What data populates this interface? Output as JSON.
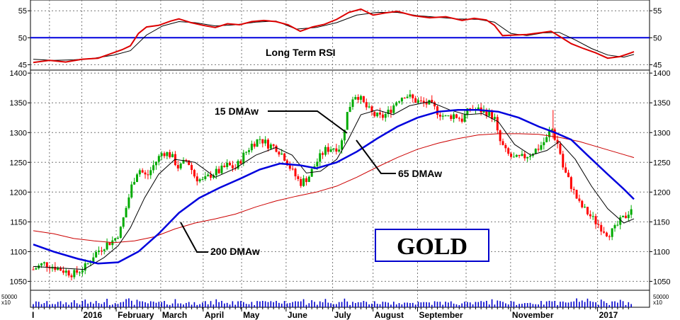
{
  "chart_data": {
    "type": "line",
    "title": "GOLD",
    "series_colors": {
      "price_up": "#00aa00",
      "price_down": "#ff0000",
      "ma15": "#000000",
      "ma65": "#0000dd",
      "ma200": "#cc0000",
      "rsi": "#dd0000",
      "rsi_ma": "#000000",
      "rsi_level": "#0000dd",
      "volume": "#0000cc"
    },
    "x_axis": {
      "labels": [
        "2016",
        "February",
        "March",
        "April",
        "May",
        "June",
        "July",
        "August",
        "September",
        "November",
        "2017"
      ],
      "leading_label": "I"
    },
    "price_panel": {
      "ylim": [
        1035,
        1405
      ],
      "y_ticks": [
        1050,
        1100,
        1150,
        1200,
        1250,
        1300,
        1350,
        1400
      ],
      "y_tick_labels": [
        "1050",
        "1100",
        "1150",
        "1200",
        "1250",
        "1300",
        "1350",
        "1400"
      ],
      "x_range": [
        0,
        283
      ],
      "price_path": [
        [
          0,
          1070
        ],
        [
          5,
          1080
        ],
        [
          10,
          1075
        ],
        [
          15,
          1068
        ],
        [
          20,
          1062
        ],
        [
          26,
          1075
        ],
        [
          30,
          1095
        ],
        [
          35,
          1110
        ],
        [
          40,
          1120
        ],
        [
          43,
          1135
        ],
        [
          46,
          1175
        ],
        [
          49,
          1215
        ],
        [
          52,
          1240
        ],
        [
          56,
          1225
        ],
        [
          60,
          1248
        ],
        [
          64,
          1268
        ],
        [
          68,
          1262
        ],
        [
          72,
          1240
        ],
        [
          76,
          1255
        ],
        [
          80,
          1225
        ],
        [
          84,
          1218
        ],
        [
          88,
          1230
        ],
        [
          92,
          1235
        ],
        [
          96,
          1245
        ],
        [
          100,
          1240
        ],
        [
          104,
          1262
        ],
        [
          108,
          1280
        ],
        [
          112,
          1290
        ],
        [
          116,
          1280
        ],
        [
          120,
          1275
        ],
        [
          124,
          1260
        ],
        [
          128,
          1235
        ],
        [
          132,
          1215
        ],
        [
          136,
          1225
        ],
        [
          140,
          1250
        ],
        [
          144,
          1270
        ],
        [
          148,
          1275
        ],
        [
          152,
          1275
        ],
        [
          155,
          1330
        ],
        [
          158,
          1360
        ],
        [
          160,
          1365
        ],
        [
          164,
          1345
        ],
        [
          168,
          1330
        ],
        [
          172,
          1325
        ],
        [
          176,
          1335
        ],
        [
          180,
          1355
        ],
        [
          184,
          1365
        ],
        [
          188,
          1355
        ],
        [
          192,
          1350
        ],
        [
          196,
          1348
        ],
        [
          200,
          1335
        ],
        [
          204,
          1325
        ],
        [
          208,
          1330
        ],
        [
          212,
          1322
        ],
        [
          216,
          1340
        ],
        [
          220,
          1338
        ],
        [
          224,
          1335
        ],
        [
          228,
          1325
        ],
        [
          230,
          1290
        ],
        [
          234,
          1265
        ],
        [
          238,
          1255
        ],
        [
          242,
          1258
        ],
        [
          246,
          1265
        ],
        [
          250,
          1275
        ],
        [
          254,
          1290
        ],
        [
          256,
          1310
        ],
        [
          258,
          1290
        ],
        [
          260,
          1275
        ],
        [
          262,
          1240
        ],
        [
          266,
          1210
        ],
        [
          270,
          1180
        ],
        [
          274,
          1165
        ],
        [
          278,
          1150
        ],
        [
          281,
          1140
        ],
        [
          284,
          1130
        ],
        [
          287,
          1135
        ],
        [
          290,
          1150
        ],
        [
          293,
          1160
        ],
        [
          296,
          1175
        ]
      ],
      "ma15": [
        [
          0,
          1075
        ],
        [
          15,
          1072
        ],
        [
          25,
          1070
        ],
        [
          35,
          1090
        ],
        [
          42,
          1110
        ],
        [
          48,
          1140
        ],
        [
          55,
          1190
        ],
        [
          62,
          1230
        ],
        [
          70,
          1255
        ],
        [
          80,
          1250
        ],
        [
          90,
          1225
        ],
        [
          100,
          1240
        ],
        [
          110,
          1262
        ],
        [
          120,
          1275
        ],
        [
          128,
          1262
        ],
        [
          135,
          1232
        ],
        [
          142,
          1235
        ],
        [
          150,
          1255
        ],
        [
          156,
          1290
        ],
        [
          162,
          1330
        ],
        [
          170,
          1338
        ],
        [
          178,
          1330
        ],
        [
          186,
          1345
        ],
        [
          196,
          1352
        ],
        [
          206,
          1338
        ],
        [
          214,
          1330
        ],
        [
          222,
          1332
        ],
        [
          230,
          1318
        ],
        [
          238,
          1280
        ],
        [
          246,
          1262
        ],
        [
          254,
          1270
        ],
        [
          260,
          1285
        ],
        [
          268,
          1255
        ],
        [
          276,
          1210
        ],
        [
          284,
          1172
        ],
        [
          292,
          1148
        ],
        [
          297,
          1155
        ]
      ],
      "ma65": [
        [
          0,
          1112
        ],
        [
          10,
          1100
        ],
        [
          22,
          1088
        ],
        [
          32,
          1080
        ],
        [
          42,
          1082
        ],
        [
          52,
          1100
        ],
        [
          62,
          1130
        ],
        [
          72,
          1165
        ],
        [
          82,
          1190
        ],
        [
          92,
          1207
        ],
        [
          102,
          1222
        ],
        [
          112,
          1238
        ],
        [
          122,
          1248
        ],
        [
          132,
          1245
        ],
        [
          140,
          1240
        ],
        [
          150,
          1250
        ],
        [
          160,
          1268
        ],
        [
          170,
          1290
        ],
        [
          180,
          1310
        ],
        [
          190,
          1325
        ],
        [
          200,
          1335
        ],
        [
          210,
          1338
        ],
        [
          220,
          1338
        ],
        [
          230,
          1335
        ],
        [
          240,
          1325
        ],
        [
          250,
          1310
        ],
        [
          258,
          1300
        ],
        [
          266,
          1288
        ],
        [
          274,
          1262
        ],
        [
          284,
          1230
        ],
        [
          292,
          1205
        ],
        [
          297,
          1188
        ]
      ],
      "ma200": [
        [
          0,
          1135
        ],
        [
          10,
          1130
        ],
        [
          20,
          1122
        ],
        [
          30,
          1118
        ],
        [
          40,
          1115
        ],
        [
          50,
          1118
        ],
        [
          60,
          1125
        ],
        [
          70,
          1138
        ],
        [
          80,
          1148
        ],
        [
          90,
          1155
        ],
        [
          100,
          1163
        ],
        [
          110,
          1175
        ],
        [
          120,
          1185
        ],
        [
          130,
          1193
        ],
        [
          140,
          1200
        ],
        [
          150,
          1210
        ],
        [
          160,
          1225
        ],
        [
          170,
          1242
        ],
        [
          180,
          1258
        ],
        [
          190,
          1272
        ],
        [
          200,
          1282
        ],
        [
          210,
          1290
        ],
        [
          220,
          1296
        ],
        [
          230,
          1298
        ],
        [
          240,
          1298
        ],
        [
          250,
          1297
        ],
        [
          260,
          1292
        ],
        [
          270,
          1285
        ],
        [
          280,
          1275
        ],
        [
          290,
          1265
        ],
        [
          297,
          1258
        ]
      ]
    },
    "rsi_panel": {
      "label": "Long Term RSI",
      "ylim": [
        44,
        57
      ],
      "y_ticks": [
        45,
        50,
        55
      ],
      "y_tick_labels": [
        "45",
        "50",
        "55"
      ],
      "reference_level": 50,
      "rsi": [
        [
          0,
          45.4
        ],
        [
          8,
          45.8
        ],
        [
          16,
          45.5
        ],
        [
          24,
          46.0
        ],
        [
          32,
          46.2
        ],
        [
          38,
          47.0
        ],
        [
          44,
          47.8
        ],
        [
          48,
          48.5
        ],
        [
          52,
          50.8
        ],
        [
          56,
          52.0
        ],
        [
          62,
          52.3
        ],
        [
          68,
          53.1
        ],
        [
          72,
          53.5
        ],
        [
          78,
          52.8
        ],
        [
          84,
          52.3
        ],
        [
          90,
          51.9
        ],
        [
          96,
          52.6
        ],
        [
          102,
          52.4
        ],
        [
          108,
          53.0
        ],
        [
          114,
          53.2
        ],
        [
          120,
          53.0
        ],
        [
          126,
          52.4
        ],
        [
          132,
          51.2
        ],
        [
          138,
          52.0
        ],
        [
          144,
          52.5
        ],
        [
          150,
          53.4
        ],
        [
          156,
          54.7
        ],
        [
          162,
          55.3
        ],
        [
          168,
          54.2
        ],
        [
          174,
          54.6
        ],
        [
          180,
          54.9
        ],
        [
          188,
          54.1
        ],
        [
          196,
          53.7
        ],
        [
          204,
          53.9
        ],
        [
          212,
          53.2
        ],
        [
          218,
          53.6
        ],
        [
          224,
          53.3
        ],
        [
          228,
          52.3
        ],
        [
          232,
          50.4
        ],
        [
          238,
          50.5
        ],
        [
          244,
          50.6
        ],
        [
          250,
          50.9
        ],
        [
          256,
          51.2
        ],
        [
          260,
          50.3
        ],
        [
          266,
          48.9
        ],
        [
          272,
          48.0
        ],
        [
          278,
          47.2
        ],
        [
          284,
          46.2
        ],
        [
          290,
          46.5
        ],
        [
          294,
          47.0
        ],
        [
          297,
          47.4
        ]
      ],
      "rsi_ma": [
        [
          0,
          46.0
        ],
        [
          10,
          45.8
        ],
        [
          20,
          45.9
        ],
        [
          30,
          46.2
        ],
        [
          40,
          46.8
        ],
        [
          48,
          47.6
        ],
        [
          56,
          50.5
        ],
        [
          64,
          52.2
        ],
        [
          72,
          53.0
        ],
        [
          80,
          52.8
        ],
        [
          90,
          52.2
        ],
        [
          100,
          52.4
        ],
        [
          110,
          52.9
        ],
        [
          120,
          53.1
        ],
        [
          130,
          51.6
        ],
        [
          140,
          51.9
        ],
        [
          150,
          52.8
        ],
        [
          160,
          54.2
        ],
        [
          170,
          54.7
        ],
        [
          180,
          54.7
        ],
        [
          190,
          54.1
        ],
        [
          200,
          53.8
        ],
        [
          210,
          53.5
        ],
        [
          220,
          53.4
        ],
        [
          228,
          52.9
        ],
        [
          236,
          50.8
        ],
        [
          244,
          50.4
        ],
        [
          252,
          50.9
        ],
        [
          260,
          51.0
        ],
        [
          268,
          49.6
        ],
        [
          276,
          48.0
        ],
        [
          284,
          46.8
        ],
        [
          292,
          46.4
        ],
        [
          297,
          46.9
        ]
      ]
    },
    "volume_panel": {
      "label": "50000",
      "sub_label": "x10"
    },
    "annotations": {
      "ma15": "15 DMAw",
      "ma65": "65 DMAw",
      "ma200": "200 DMAw"
    }
  }
}
